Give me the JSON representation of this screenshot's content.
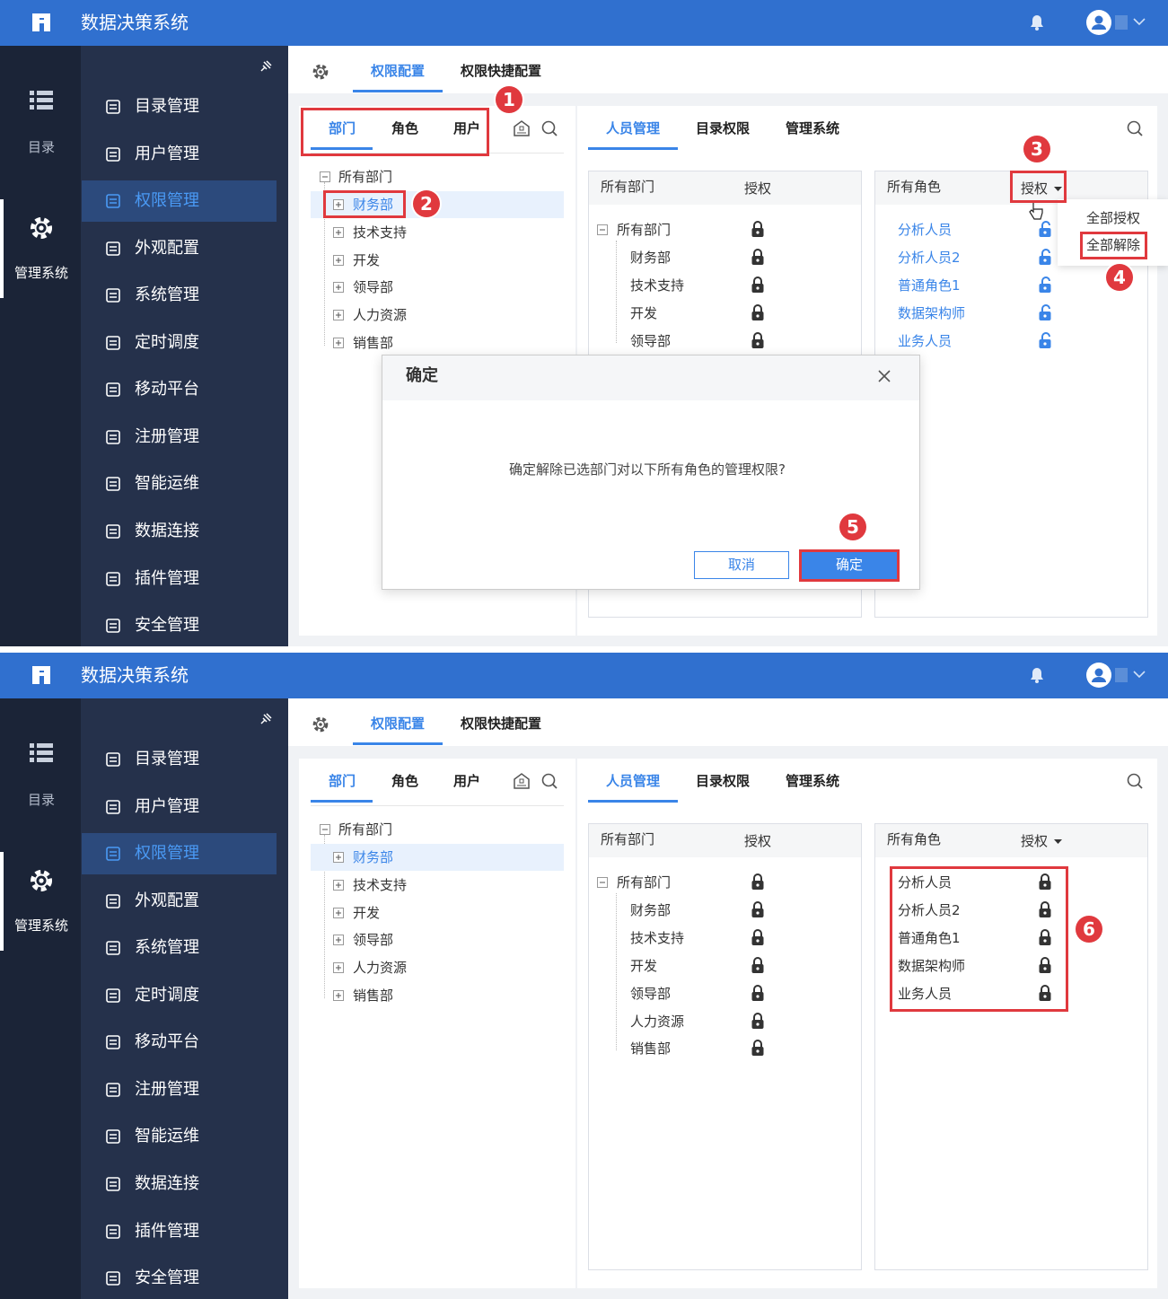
{
  "screens": [
    {
      "app_title": "数据决策系统",
      "rail": [
        "目录",
        "管理系统"
      ],
      "menu": [
        "目录管理",
        "用户管理",
        "权限管理",
        "外观配置",
        "系统管理",
        "定时调度",
        "移动平台",
        "注册管理",
        "智能运维",
        "数据连接",
        "插件管理",
        "安全管理"
      ],
      "top_tabs": [
        "权限配置",
        "权限快捷配置"
      ],
      "left_tabs": [
        "部门",
        "角色",
        "用户"
      ],
      "tree": [
        "所有部门",
        "财务部",
        "技术支持",
        "开发",
        "领导部",
        "人力资源",
        "销售部"
      ],
      "right_tabs": [
        "人员管理",
        "目录权限",
        "管理系统"
      ],
      "dept_panel": {
        "header": "所有部门",
        "auth": "授权",
        "items": [
          "所有部门",
          "财务部",
          "技术支持",
          "开发",
          "领导部"
        ]
      },
      "role_panel": {
        "header": "所有角色",
        "auth": "授权",
        "items": [
          "分析人员",
          "分析人员2",
          "普通角色1",
          "数据架构师",
          "业务人员"
        ]
      },
      "dropdown": [
        "全部授权",
        "全部解除"
      ],
      "dialog": {
        "title": "确定",
        "message": "确定解除已选部门对以下所有角色的管理权限?",
        "cancel": "取消",
        "ok": "确定"
      },
      "badges": [
        "1",
        "2",
        "3",
        "4",
        "5"
      ]
    },
    {
      "app_title": "数据决策系统",
      "rail": [
        "目录",
        "管理系统"
      ],
      "menu": [
        "目录管理",
        "用户管理",
        "权限管理",
        "外观配置",
        "系统管理",
        "定时调度",
        "移动平台",
        "注册管理",
        "智能运维",
        "数据连接",
        "插件管理",
        "安全管理"
      ],
      "top_tabs": [
        "权限配置",
        "权限快捷配置"
      ],
      "left_tabs": [
        "部门",
        "角色",
        "用户"
      ],
      "tree": [
        "所有部门",
        "财务部",
        "技术支持",
        "开发",
        "领导部",
        "人力资源",
        "销售部"
      ],
      "right_tabs": [
        "人员管理",
        "目录权限",
        "管理系统"
      ],
      "dept_panel": {
        "header": "所有部门",
        "auth": "授权",
        "items": [
          "所有部门",
          "财务部",
          "技术支持",
          "开发",
          "领导部",
          "人力资源",
          "销售部"
        ]
      },
      "role_panel": {
        "header": "所有角色",
        "auth": "授权",
        "items": [
          "分析人员",
          "分析人员2",
          "普通角色1",
          "数据架构师",
          "业务人员"
        ]
      },
      "badges": [
        "6"
      ]
    }
  ]
}
